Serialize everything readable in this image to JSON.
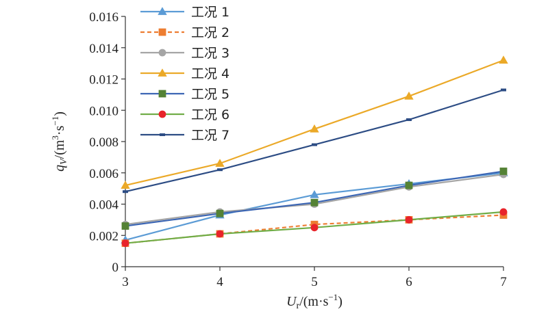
{
  "chart_data": {
    "type": "line",
    "x": [
      3,
      4,
      5,
      6,
      7
    ],
    "xlim": [
      3,
      7
    ],
    "ylim": [
      0,
      0.016
    ],
    "xticks": [
      "3",
      "4",
      "5",
      "6",
      "7"
    ],
    "yticks": [
      "0",
      "0.002",
      "0.004",
      "0.006",
      "0.008",
      "0.010",
      "0.012",
      "0.014",
      "0.016"
    ],
    "xlabel": {
      "main": "U",
      "sub": "r",
      "rest": "/(m·s",
      "sup": "−1",
      "end": ")"
    },
    "ylabel": {
      "main": "q",
      "sub": "V",
      "rest": "/(m",
      "sup1": "3",
      "mid": "·s",
      "sup2": "−1",
      "end": ")"
    },
    "grid": false,
    "legend_position": "top-left",
    "series": [
      {
        "name": "工况 1",
        "color": "#5b9bd5",
        "marker": "triangle",
        "dash": "solid",
        "values": [
          0.0017,
          0.0033,
          0.0046,
          0.0053,
          0.006
        ]
      },
      {
        "name": "工况 2",
        "color": "#ed7d31",
        "marker": "square",
        "dash": "dashed",
        "values": [
          0.0015,
          0.0021,
          0.0027,
          0.003,
          0.0033
        ]
      },
      {
        "name": "工况 3",
        "color": "#a5a5a5",
        "marker": "circle",
        "dash": "solid",
        "values": [
          0.0027,
          0.0035,
          0.004,
          0.0051,
          0.0059
        ]
      },
      {
        "name": "工况 4",
        "color": "#eba928",
        "marker": "triangle",
        "dash": "solid",
        "values": [
          0.0052,
          0.0066,
          0.0088,
          0.0109,
          0.0132
        ]
      },
      {
        "name": "工况 5",
        "color": "#3c66b4",
        "marker": "square",
        "dash": "solid",
        "values": [
          0.0026,
          0.0034,
          0.0041,
          0.0052,
          0.0061
        ],
        "marker_color": "#548235"
      },
      {
        "name": "工况 6",
        "color": "#70ad47",
        "marker": "circle",
        "dash": "solid",
        "values": [
          0.0015,
          0.0021,
          0.0025,
          0.003,
          0.0035
        ],
        "marker_color": "#e8242a"
      },
      {
        "name": "工况 7",
        "color": "#2c4c84",
        "marker": "dash",
        "dash": "solid",
        "values": [
          0.0048,
          0.0062,
          0.0078,
          0.0094,
          0.0113
        ]
      }
    ]
  }
}
